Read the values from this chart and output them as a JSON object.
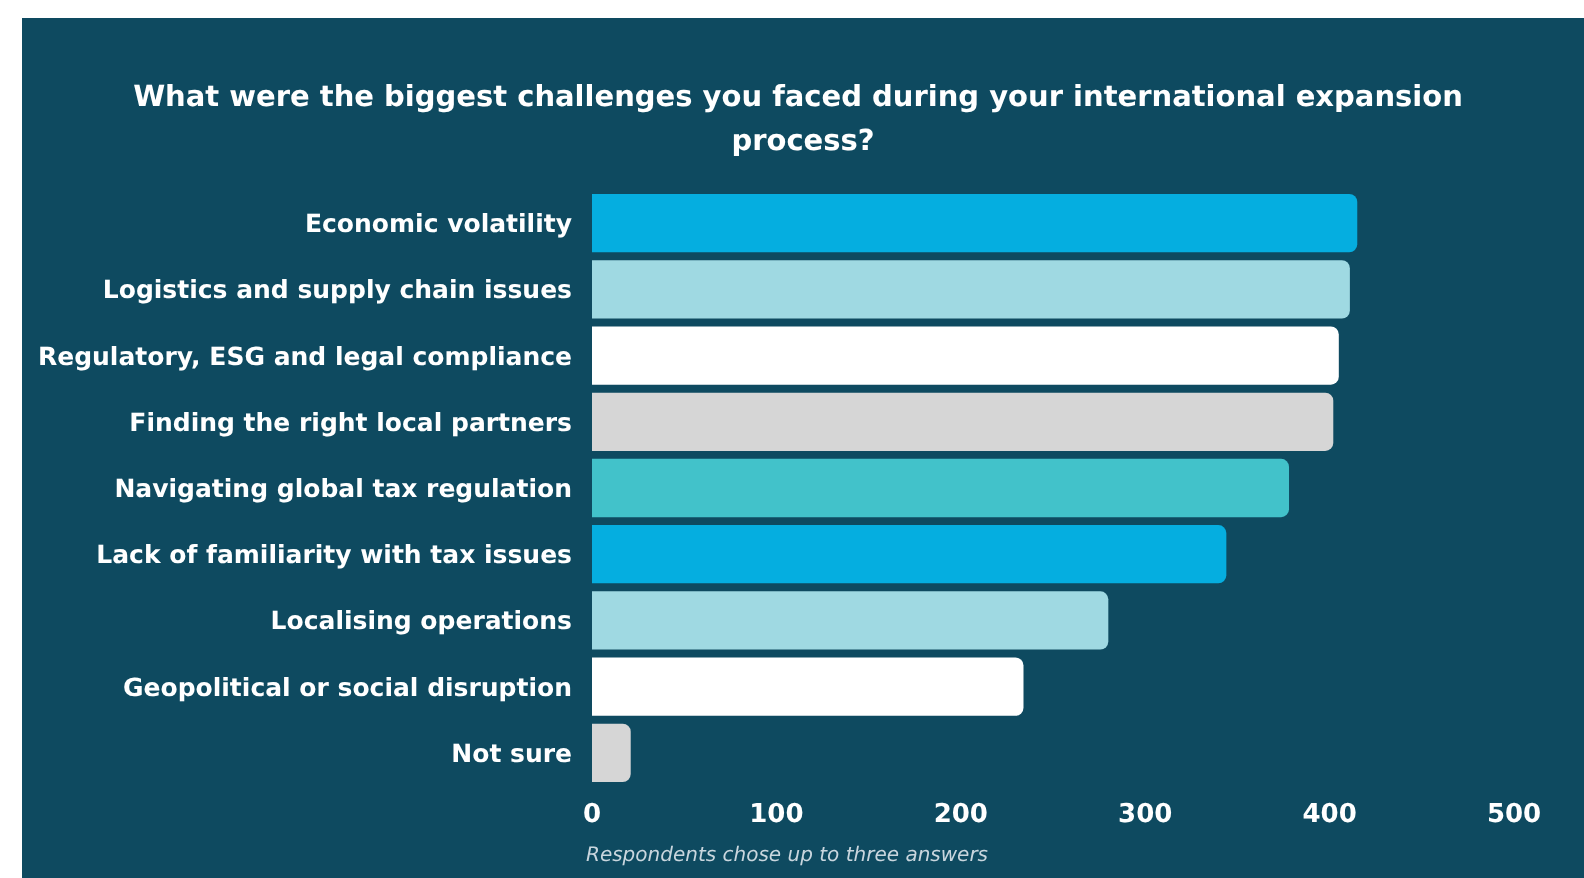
{
  "chart_data": {
    "type": "bar",
    "orientation": "horizontal",
    "title": "What were the biggest challenges you faced during your international expansion process?",
    "categories": [
      "Economic volatility",
      "Logistics and supply chain issues",
      "Regulatory, ESG and legal compliance",
      "Finding the right local partners",
      "Navigating global tax regulation",
      "Lack of familiarity with tax issues",
      "Localising operations",
      "Geopolitical or social disruption",
      "Not sure"
    ],
    "values": [
      415,
      411,
      405,
      402,
      378,
      344,
      280,
      234,
      21
    ],
    "colors": [
      "#05aee0",
      "#9fd9e2",
      "#ffffff",
      "#d6d6d6",
      "#42c2ca",
      "#05aee0",
      "#9fd9e2",
      "#ffffff",
      "#d6d6d6"
    ],
    "xlim": [
      0,
      500
    ],
    "xticks": [
      0,
      100,
      200,
      300,
      400,
      500
    ],
    "grid": false,
    "annotations": [
      "Respondents chose up to three answers"
    ]
  }
}
